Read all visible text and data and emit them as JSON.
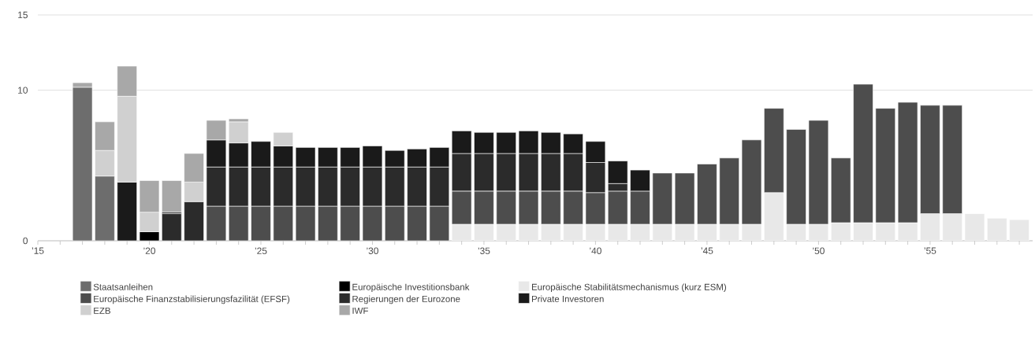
{
  "chart_data": {
    "type": "bar",
    "stacked": true,
    "grid": "y",
    "legend": "bottom",
    "x": [
      2017,
      2018,
      2019,
      2020,
      2021,
      2022,
      2023,
      2024,
      2025,
      2026,
      2027,
      2028,
      2029,
      2030,
      2031,
      2032,
      2033,
      2034,
      2035,
      2036,
      2037,
      2038,
      2039,
      2040,
      2041,
      2042,
      2043,
      2044,
      2045,
      2046,
      2047,
      2048,
      2049,
      2050,
      2051,
      2052,
      2053,
      2054,
      2055,
      2056,
      2057,
      2058,
      2059
    ],
    "xlim": [
      2015,
      2059.6
    ],
    "xticks": [
      {
        "value": 2015,
        "label": "’15"
      },
      {
        "value": 2016,
        "label": null
      },
      {
        "value": 2017,
        "label": null
      },
      {
        "value": 2018,
        "label": null
      },
      {
        "value": 2019,
        "label": null
      },
      {
        "value": 2020,
        "label": "’20"
      },
      {
        "value": 2021,
        "label": null
      },
      {
        "value": 2022,
        "label": null
      },
      {
        "value": 2023,
        "label": null
      },
      {
        "value": 2024,
        "label": null
      },
      {
        "value": 2025,
        "label": "’25"
      },
      {
        "value": 2026,
        "label": null
      },
      {
        "value": 2027,
        "label": null
      },
      {
        "value": 2028,
        "label": null
      },
      {
        "value": 2029,
        "label": null
      },
      {
        "value": 2030,
        "label": "’30"
      },
      {
        "value": 2031,
        "label": null
      },
      {
        "value": 2032,
        "label": null
      },
      {
        "value": 2033,
        "label": null
      },
      {
        "value": 2034,
        "label": null
      },
      {
        "value": 2035,
        "label": "’35"
      },
      {
        "value": 2036,
        "label": null
      },
      {
        "value": 2037,
        "label": null
      },
      {
        "value": 2038,
        "label": null
      },
      {
        "value": 2039,
        "label": null
      },
      {
        "value": 2040,
        "label": "’40"
      },
      {
        "value": 2041,
        "label": null
      },
      {
        "value": 2042,
        "label": null
      },
      {
        "value": 2043,
        "label": null
      },
      {
        "value": 2044,
        "label": null
      },
      {
        "value": 2045,
        "label": "’45"
      },
      {
        "value": 2046,
        "label": null
      },
      {
        "value": 2047,
        "label": null
      },
      {
        "value": 2048,
        "label": null
      },
      {
        "value": 2049,
        "label": null
      },
      {
        "value": 2050,
        "label": "’50"
      },
      {
        "value": 2051,
        "label": null
      },
      {
        "value": 2052,
        "label": null
      },
      {
        "value": 2053,
        "label": null
      },
      {
        "value": 2054,
        "label": null
      },
      {
        "value": 2055,
        "label": "’55"
      },
      {
        "value": 2056,
        "label": null
      },
      {
        "value": 2057,
        "label": null
      },
      {
        "value": 2058,
        "label": null
      },
      {
        "value": 2059,
        "label": null
      }
    ],
    "ylim": [
      0,
      15
    ],
    "yticks": [
      0,
      10,
      15
    ],
    "series": [
      {
        "name": "Staatsanleihen",
        "color": "#6d6d6d",
        "values": [
          10.2,
          4.3,
          null,
          null,
          null,
          null,
          null,
          null,
          null,
          null,
          null,
          null,
          null,
          null,
          null,
          null,
          null,
          null,
          null,
          null,
          null,
          null,
          null,
          null,
          null,
          null,
          null,
          null,
          null,
          null,
          null,
          null,
          null,
          null,
          null,
          null,
          null,
          null,
          null,
          null,
          null,
          null,
          null
        ]
      },
      {
        "name": "Europäische Investitionsbank",
        "color": "#000000",
        "values": [
          null,
          null,
          null,
          0.6,
          null,
          null,
          null,
          null,
          null,
          null,
          null,
          null,
          null,
          null,
          null,
          null,
          null,
          null,
          null,
          null,
          null,
          null,
          null,
          null,
          null,
          null,
          null,
          null,
          null,
          null,
          null,
          null,
          null,
          null,
          null,
          null,
          null,
          null,
          null,
          null,
          null,
          null,
          null
        ]
      },
      {
        "name": "Europäische Stabilitätsmechanismus (kurz ESM)",
        "color": "#e8e8e8",
        "values": [
          null,
          null,
          null,
          null,
          null,
          null,
          null,
          null,
          null,
          null,
          null,
          null,
          null,
          null,
          null,
          null,
          null,
          1.1,
          1.1,
          1.1,
          1.1,
          1.1,
          1.1,
          1.1,
          1.1,
          1.1,
          1.1,
          1.1,
          1.1,
          1.1,
          1.1,
          3.2,
          1.1,
          1.1,
          1.2,
          1.2,
          1.2,
          1.2,
          1.8,
          1.8,
          1.8,
          1.5,
          1.4
        ]
      },
      {
        "name": "Europäische Finanzstabilisierungsfazilität (EFSF)",
        "color": "#4d4d4d",
        "values": [
          null,
          null,
          null,
          null,
          null,
          null,
          2.3,
          2.3,
          2.3,
          2.3,
          2.3,
          2.3,
          2.3,
          2.3,
          2.3,
          2.3,
          2.3,
          2.2,
          2.2,
          2.2,
          2.2,
          2.2,
          2.2,
          2.1,
          2.2,
          2.2,
          3.4,
          3.4,
          4.0,
          4.4,
          5.6,
          5.6,
          6.3,
          6.9,
          4.3,
          9.2,
          7.6,
          8.0,
          7.2,
          7.2,
          null,
          null,
          null
        ]
      },
      {
        "name": "Regierungen der Eurozone",
        "color": "#2b2b2b",
        "values": [
          null,
          null,
          null,
          null,
          1.8,
          2.6,
          2.6,
          2.6,
          2.6,
          2.6,
          2.6,
          2.6,
          2.6,
          2.6,
          2.6,
          2.6,
          2.6,
          2.5,
          2.5,
          2.5,
          2.5,
          2.5,
          2.5,
          2.0,
          0.5,
          null,
          null,
          null,
          null,
          null,
          null,
          null,
          null,
          null,
          null,
          null,
          null,
          null,
          null,
          null,
          null,
          null,
          null
        ]
      },
      {
        "name": "Private Investoren",
        "color": "#1a1a1a",
        "values": [
          null,
          null,
          3.9,
          null,
          0.1,
          null,
          1.8,
          1.6,
          1.7,
          1.4,
          1.3,
          1.3,
          1.3,
          1.4,
          1.1,
          1.2,
          1.3,
          1.5,
          1.4,
          1.4,
          1.5,
          1.4,
          1.3,
          1.4,
          1.5,
          1.4,
          null,
          null,
          null,
          null,
          null,
          null,
          null,
          null,
          null,
          null,
          null,
          null,
          null,
          null,
          null,
          null,
          null
        ]
      },
      {
        "name": "EZB",
        "color": "#d0d0d0",
        "values": [
          null,
          1.7,
          5.7,
          1.3,
          null,
          1.3,
          null,
          1.4,
          null,
          0.9,
          null,
          null,
          null,
          null,
          null,
          null,
          null,
          null,
          null,
          null,
          null,
          null,
          null,
          null,
          null,
          null,
          null,
          null,
          null,
          null,
          null,
          null,
          null,
          null,
          null,
          null,
          null,
          null,
          null,
          null,
          null,
          null,
          null
        ]
      },
      {
        "name": "IWF",
        "color": "#a8a8a8",
        "values": [
          0.3,
          1.9,
          2.0,
          2.1,
          2.1,
          1.9,
          1.3,
          0.2,
          null,
          null,
          null,
          null,
          null,
          null,
          null,
          null,
          null,
          null,
          null,
          null,
          null,
          null,
          null,
          null,
          null,
          null,
          null,
          null,
          null,
          null,
          null,
          null,
          null,
          null,
          null,
          null,
          null,
          null,
          null,
          null,
          null,
          null,
          null
        ]
      }
    ]
  }
}
